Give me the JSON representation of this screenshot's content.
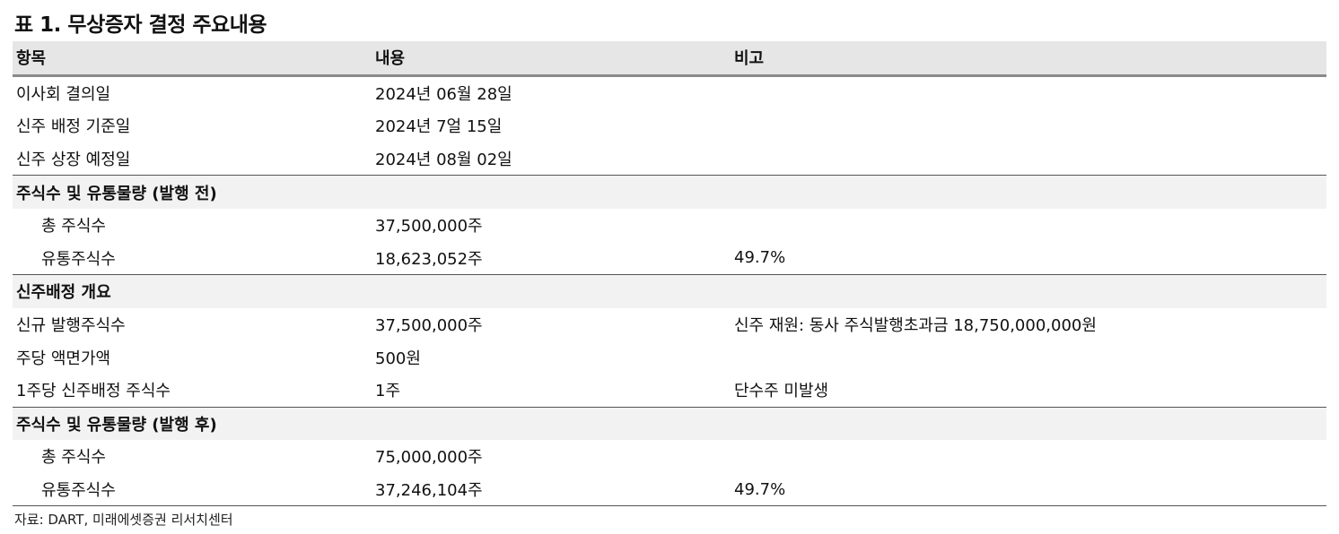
{
  "title": "표 1. 무상증자 결정 주요내용",
  "headers": {
    "item": "항목",
    "content": "내용",
    "note": "비고"
  },
  "rows": {
    "r1": {
      "item": "이사회 결의일",
      "content": "2024년 06월 28일",
      "note": ""
    },
    "r2": {
      "item": "신주 배정 기준일",
      "content": "2024년 7얼 15일",
      "note": ""
    },
    "r3": {
      "item": "신주 상장 예정일",
      "content": "2024년 08월 02일",
      "note": ""
    },
    "s1": {
      "item": "주식수 및 유통물량 (발행 전)"
    },
    "r4": {
      "item": "총 주식수",
      "content": "37,500,000주",
      "note": ""
    },
    "r5": {
      "item": "유통주식수",
      "content": "18,623,052주",
      "note": "49.7%"
    },
    "s2": {
      "item": "신주배정 개요"
    },
    "r6": {
      "item": "신규 발행주식수",
      "content": "37,500,000주",
      "note": "신주 재원: 동사 주식발행초과금 18,750,000,000원"
    },
    "r7": {
      "item": "주당 액면가액",
      "content": "500원",
      "note": ""
    },
    "r8": {
      "item": "1주당 신주배정 주식수",
      "content": "1주",
      "note": "단수주 미발생"
    },
    "s3": {
      "item": "주식수 및 유통물량 (발행 후)"
    },
    "r9": {
      "item": "총 주식수",
      "content": "75,000,000주",
      "note": ""
    },
    "r10": {
      "item": "유통주식수",
      "content": "37,246,104주",
      "note": "49.7%"
    }
  },
  "source": "자료: DART, 미래에셋증권 리서치센터"
}
